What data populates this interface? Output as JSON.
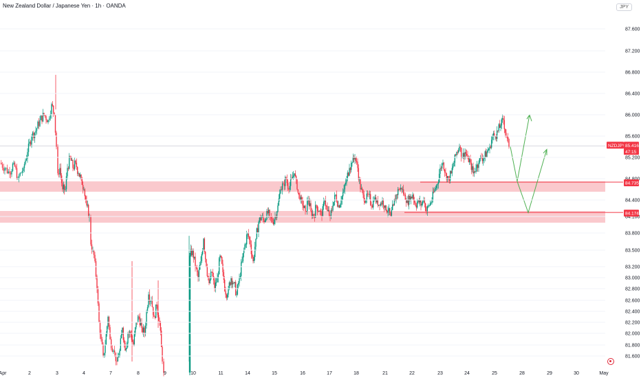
{
  "header": {
    "title": "New Zealand Dollar / Japanese Yen · 1h · OANDA",
    "currency": "JPY"
  },
  "chart_data": {
    "type": "candlestick",
    "symbol": "NZDJPY",
    "y_ticks": [
      "87.600",
      "87.200",
      "86.800",
      "86.400",
      "86.000",
      "85.600",
      "85.200",
      "84.800",
      "84.400",
      "84.100",
      "83.800",
      "83.500",
      "83.200",
      "83.000",
      "82.800",
      "82.600",
      "82.400",
      "82.200",
      "82.000",
      "81.800",
      "81.600"
    ],
    "x_ticks": [
      "Apr",
      "2",
      "3",
      "4",
      "7",
      "8",
      "9",
      "10",
      "11",
      "14",
      "15",
      "16",
      "17",
      "18",
      "21",
      "22",
      "23",
      "24",
      "25",
      "28",
      "29",
      "30",
      "May"
    ],
    "ylim": [
      81.2,
      87.9
    ],
    "last_price": {
      "value": 85.416,
      "label": "85.416",
      "symbol_label": "NZDJPY",
      "countdown": "47:15"
    },
    "levels": [
      {
        "value": 84.735,
        "label": "84.735"
      },
      {
        "value": 84.174,
        "label": "84.174"
      }
    ],
    "zones": [
      {
        "from": 84.62,
        "to": 84.75
      },
      {
        "from": 84.05,
        "to": 84.2
      }
    ],
    "path_close": [
      [
        0,
        85.1
      ],
      [
        7,
        85.0
      ],
      [
        14,
        84.9
      ],
      [
        20,
        85.1
      ],
      [
        26,
        84.8
      ],
      [
        34,
        85.0
      ],
      [
        40,
        85.3
      ],
      [
        46,
        85.6
      ],
      [
        52,
        85.7
      ],
      [
        58,
        85.9
      ],
      [
        64,
        86.0
      ],
      [
        70,
        85.9
      ],
      [
        75,
        86.2
      ],
      [
        79,
        86.0
      ],
      [
        82,
        85.4
      ],
      [
        84,
        84.9
      ],
      [
        87,
        85.0
      ],
      [
        91,
        84.6
      ],
      [
        95,
        84.6
      ],
      [
        98,
        85.0
      ],
      [
        102,
        85.2
      ],
      [
        106,
        85.0
      ],
      [
        110,
        85.1
      ],
      [
        114,
        84.9
      ],
      [
        118,
        84.8
      ],
      [
        122,
        84.6
      ],
      [
        126,
        84.3
      ],
      [
        130,
        84.1
      ],
      [
        132,
        83.6
      ],
      [
        135,
        83.5
      ],
      [
        138,
        83.3
      ],
      [
        141,
        82.8
      ],
      [
        144,
        82.2
      ],
      [
        147,
        81.9
      ],
      [
        150,
        81.6
      ],
      [
        153,
        81.8
      ],
      [
        157,
        82.3
      ],
      [
        160,
        81.9
      ],
      [
        165,
        81.7
      ],
      [
        170,
        81.5
      ],
      [
        174,
        81.7
      ],
      [
        178,
        82.1
      ],
      [
        182,
        81.7
      ],
      [
        186,
        82.0
      ],
      [
        190,
        82.0
      ],
      [
        194,
        81.8
      ],
      [
        198,
        82.2
      ],
      [
        202,
        82.3
      ],
      [
        206,
        82.1
      ],
      [
        210,
        82.0
      ],
      [
        213,
        82.4
      ],
      [
        216,
        82.7
      ],
      [
        220,
        82.6
      ],
      [
        224,
        82.3
      ],
      [
        228,
        82.5
      ],
      [
        232,
        82.2
      ],
      [
        236,
        81.5
      ],
      [
        238,
        81.3
      ],
      [
        276,
        83.4
      ],
      [
        280,
        83.5
      ],
      [
        284,
        83.2
      ],
      [
        288,
        83.0
      ],
      [
        292,
        83.3
      ],
      [
        296,
        83.7
      ],
      [
        300,
        83.2
      ],
      [
        304,
        82.9
      ],
      [
        308,
        83.1
      ],
      [
        312,
        82.8
      ],
      [
        316,
        83.0
      ],
      [
        320,
        83.4
      ],
      [
        324,
        83.1
      ],
      [
        328,
        82.7
      ],
      [
        332,
        82.8
      ],
      [
        336,
        83.0
      ],
      [
        340,
        82.9
      ],
      [
        344,
        82.7
      ],
      [
        348,
        83.0
      ],
      [
        352,
        83.3
      ],
      [
        356,
        83.6
      ],
      [
        360,
        83.8
      ],
      [
        364,
        83.6
      ],
      [
        368,
        83.3
      ],
      [
        372,
        83.7
      ],
      [
        376,
        84.0
      ],
      [
        380,
        84.1
      ],
      [
        384,
        84.0
      ],
      [
        388,
        84.2
      ],
      [
        392,
        84.1
      ],
      [
        396,
        84.0
      ],
      [
        400,
        84.1
      ],
      [
        404,
        84.3
      ],
      [
        408,
        84.6
      ],
      [
        412,
        84.7
      ],
      [
        416,
        84.8
      ],
      [
        420,
        84.6
      ],
      [
        424,
        84.8
      ],
      [
        428,
        84.9
      ],
      [
        432,
        84.6
      ],
      [
        436,
        84.4
      ],
      [
        440,
        84.3
      ],
      [
        444,
        84.2
      ],
      [
        448,
        84.4
      ],
      [
        452,
        84.2
      ],
      [
        456,
        84.1
      ],
      [
        460,
        84.3
      ],
      [
        464,
        84.2
      ],
      [
        468,
        84.1
      ],
      [
        472,
        84.4
      ],
      [
        476,
        84.2
      ],
      [
        480,
        84.1
      ],
      [
        484,
        84.3
      ],
      [
        488,
        84.5
      ],
      [
        492,
        84.3
      ],
      [
        496,
        84.4
      ],
      [
        500,
        84.6
      ],
      [
        504,
        84.8
      ],
      [
        508,
        85.0
      ],
      [
        512,
        85.1
      ],
      [
        516,
        85.2
      ],
      [
        520,
        85.0
      ],
      [
        524,
        84.6
      ],
      [
        528,
        84.5
      ],
      [
        532,
        84.4
      ],
      [
        536,
        84.5
      ],
      [
        540,
        84.3
      ],
      [
        544,
        84.4
      ],
      [
        548,
        84.4
      ],
      [
        552,
        84.3
      ],
      [
        556,
        84.4
      ],
      [
        560,
        84.3
      ],
      [
        564,
        84.2
      ],
      [
        568,
        84.1
      ],
      [
        572,
        84.3
      ],
      [
        576,
        84.5
      ],
      [
        580,
        84.6
      ],
      [
        584,
        84.6
      ],
      [
        588,
        84.5
      ],
      [
        592,
        84.4
      ],
      [
        596,
        84.4
      ],
      [
        600,
        84.5
      ],
      [
        604,
        84.3
      ],
      [
        608,
        84.4
      ],
      [
        612,
        84.3
      ],
      [
        616,
        84.4
      ],
      [
        620,
        84.2
      ],
      [
        624,
        84.3
      ],
      [
        628,
        84.4
      ],
      [
        632,
        84.6
      ],
      [
        636,
        84.7
      ],
      [
        640,
        85.0
      ],
      [
        644,
        85.1
      ],
      [
        648,
        84.9
      ],
      [
        652,
        84.8
      ],
      [
        656,
        84.9
      ],
      [
        660,
        85.1
      ],
      [
        664,
        85.3
      ],
      [
        668,
        85.4
      ],
      [
        672,
        85.2
      ],
      [
        676,
        85.3
      ],
      [
        680,
        85.2
      ],
      [
        684,
        85.1
      ],
      [
        688,
        84.9
      ],
      [
        692,
        85.0
      ],
      [
        696,
        85.1
      ],
      [
        700,
        85.2
      ],
      [
        704,
        85.2
      ],
      [
        708,
        85.3
      ],
      [
        712,
        85.4
      ],
      [
        716,
        85.6
      ],
      [
        720,
        85.6
      ],
      [
        724,
        85.7
      ],
      [
        728,
        85.8
      ],
      [
        732,
        85.9
      ],
      [
        736,
        85.6
      ],
      [
        740,
        85.4
      ]
    ],
    "projection_path": [
      [
        742,
        85.4
      ],
      [
        752,
        84.75
      ],
      [
        770,
        86.0
      ],
      [
        766,
        85.92
      ],
      [
        770,
        86.0
      ],
      [
        773,
        85.88
      ]
    ],
    "projection_path2": [
      [
        752,
        84.75
      ],
      [
        768,
        84.17
      ],
      [
        795,
        85.35
      ],
      [
        790,
        85.28
      ],
      [
        795,
        85.35
      ],
      [
        795,
        85.24
      ]
    ],
    "colors": {
      "up": "#089981",
      "down": "#f23645",
      "zone": "#f9c0c4",
      "level": "#f23645",
      "arrow": "#4caf50",
      "grid": "#f0f3fa"
    }
  }
}
